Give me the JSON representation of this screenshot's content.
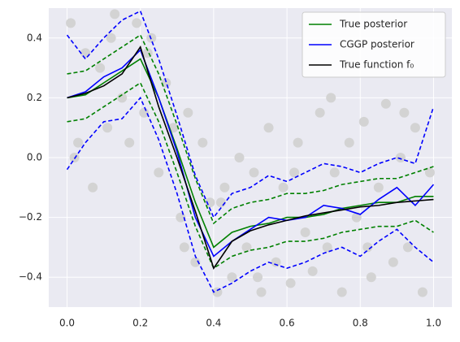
{
  "chart_data": {
    "type": "line",
    "x": [
      0,
      0.05,
      0.1,
      0.15,
      0.2,
      0.25,
      0.3,
      0.35,
      0.4,
      0.45,
      0.5,
      0.55,
      0.6,
      0.65,
      0.7,
      0.75,
      0.8,
      0.85,
      0.9,
      0.95,
      1.0
    ],
    "series": [
      {
        "name": "True posterior",
        "color": "#008000",
        "values": [
          0.2,
          0.21,
          0.25,
          0.29,
          0.33,
          0.2,
          0.03,
          -0.15,
          -0.3,
          -0.25,
          -0.23,
          -0.22,
          -0.2,
          -0.2,
          -0.19,
          -0.17,
          -0.16,
          -0.15,
          -0.15,
          -0.13,
          -0.13
        ],
        "upper": [
          0.28,
          0.29,
          0.33,
          0.37,
          0.41,
          0.28,
          0.11,
          -0.07,
          -0.22,
          -0.17,
          -0.15,
          -0.14,
          -0.12,
          -0.12,
          -0.11,
          -0.09,
          -0.08,
          -0.07,
          -0.07,
          -0.05,
          -0.03
        ],
        "lower": [
          0.12,
          0.13,
          0.17,
          0.21,
          0.25,
          0.12,
          -0.05,
          -0.23,
          -0.37,
          -0.33,
          -0.31,
          -0.3,
          -0.28,
          -0.28,
          -0.27,
          -0.25,
          -0.24,
          -0.23,
          -0.23,
          -0.21,
          -0.25
        ]
      },
      {
        "name": "CGGP posterior",
        "color": "#0000ff",
        "values": [
          0.2,
          0.22,
          0.27,
          0.3,
          0.36,
          0.2,
          0.02,
          -0.2,
          -0.33,
          -0.28,
          -0.24,
          -0.2,
          -0.21,
          -0.2,
          -0.16,
          -0.17,
          -0.19,
          -0.14,
          -0.1,
          -0.16,
          -0.09
        ],
        "upper": [
          0.41,
          0.33,
          0.4,
          0.46,
          0.49,
          0.33,
          0.14,
          -0.06,
          -0.2,
          -0.12,
          -0.1,
          -0.06,
          -0.08,
          -0.05,
          -0.02,
          -0.03,
          -0.05,
          -0.02,
          0.0,
          -0.02,
          0.17
        ],
        "lower": [
          -0.04,
          0.05,
          0.12,
          0.13,
          0.2,
          0.06,
          -0.12,
          -0.33,
          -0.45,
          -0.42,
          -0.38,
          -0.35,
          -0.37,
          -0.35,
          -0.32,
          -0.3,
          -0.33,
          -0.28,
          -0.24,
          -0.3,
          -0.35
        ]
      },
      {
        "name": "True function f₀",
        "color": "#000000",
        "values": [
          0.2,
          0.215,
          0.24,
          0.28,
          0.37,
          0.17,
          0.0,
          -0.18,
          -0.37,
          -0.28,
          -0.245,
          -0.225,
          -0.21,
          -0.195,
          -0.185,
          -0.175,
          -0.165,
          -0.16,
          -0.15,
          -0.145,
          -0.14
        ]
      }
    ],
    "points": {
      "color": "#d3d3d3",
      "x": [
        0.01,
        0.03,
        0.05,
        0.07,
        0.09,
        0.11,
        0.13,
        0.15,
        0.17,
        0.19,
        0.21,
        0.23,
        0.25,
        0.27,
        0.29,
        0.31,
        0.33,
        0.35,
        0.37,
        0.39,
        0.41,
        0.43,
        0.45,
        0.47,
        0.49,
        0.51,
        0.53,
        0.55,
        0.57,
        0.59,
        0.61,
        0.63,
        0.65,
        0.67,
        0.69,
        0.71,
        0.73,
        0.75,
        0.77,
        0.79,
        0.81,
        0.83,
        0.85,
        0.87,
        0.89,
        0.91,
        0.93,
        0.95,
        0.97,
        0.99,
        0.02,
        0.12,
        0.22,
        0.32,
        0.42,
        0.52,
        0.62,
        0.72,
        0.82,
        0.92
      ],
      "y": [
        0.45,
        0.05,
        0.35,
        -0.1,
        0.3,
        0.1,
        0.48,
        0.2,
        0.05,
        0.45,
        0.15,
        0.4,
        -0.05,
        0.25,
        0.1,
        -0.2,
        0.15,
        -0.35,
        0.05,
        -0.15,
        -0.45,
        -0.1,
        -0.4,
        0.0,
        -0.3,
        -0.05,
        -0.45,
        0.1,
        -0.35,
        -0.1,
        -0.42,
        0.05,
        -0.25,
        -0.38,
        0.15,
        -0.3,
        -0.05,
        -0.45,
        0.05,
        -0.2,
        0.12,
        -0.4,
        -0.1,
        0.18,
        -0.35,
        0.0,
        -0.3,
        0.1,
        -0.45,
        -0.05,
        0.0,
        0.4,
        0.35,
        -0.3,
        -0.15,
        -0.4,
        -0.05,
        0.2,
        -0.3,
        0.15
      ]
    },
    "xlim": [
      -0.05,
      1.05
    ],
    "ylim": [
      -0.5,
      0.5
    ],
    "xticks": [
      {
        "value": 0,
        "label": "0.0"
      },
      0.2,
      0.4,
      0.6,
      0.8,
      {
        "value": 1.0,
        "label": "1.0"
      }
    ],
    "yticks": [
      {
        "value": -0.4,
        "label": "−0.4"
      },
      {
        "value": -0.2,
        "label": "−0.2"
      },
      {
        "value": 0,
        "label": "0.0"
      },
      0.2,
      0.4
    ],
    "grid": true,
    "legend": "upper right"
  }
}
